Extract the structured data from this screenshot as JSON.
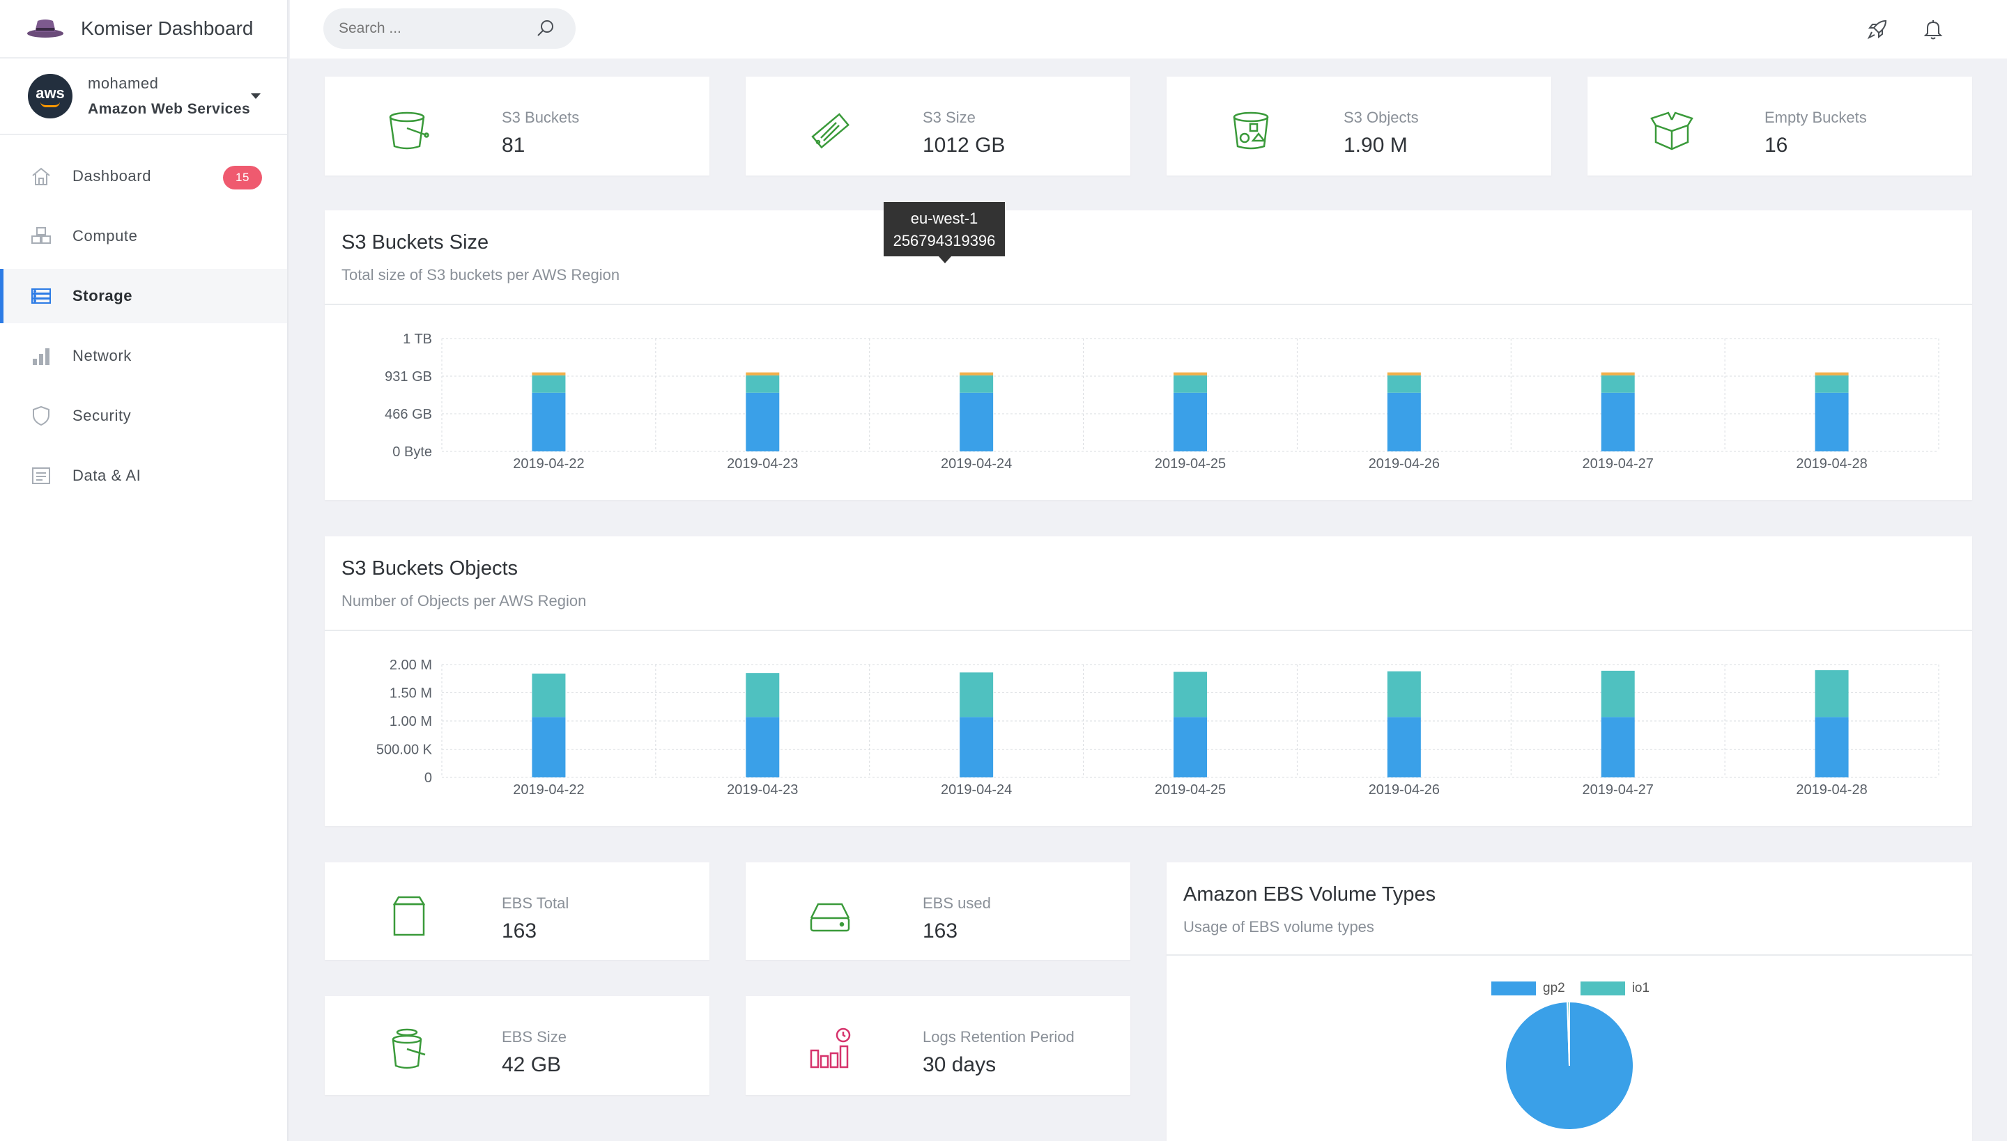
{
  "app": {
    "title": "Komiser Dashboard"
  },
  "account": {
    "user": "mohamed",
    "provider": "Amazon Web Services",
    "avatar_text": "aws"
  },
  "nav": [
    {
      "label": "Dashboard",
      "icon": "home-icon",
      "badge": "15"
    },
    {
      "label": "Compute",
      "icon": "cubes-icon"
    },
    {
      "label": "Storage",
      "icon": "storage-icon",
      "active": true
    },
    {
      "label": "Network",
      "icon": "bar-chart-icon"
    },
    {
      "label": "Security",
      "icon": "shield-icon"
    },
    {
      "label": "Data & AI",
      "icon": "document-icon"
    }
  ],
  "search": {
    "placeholder": "Search ..."
  },
  "stats": {
    "s3_buckets": {
      "label": "S3 Buckets",
      "value": "81"
    },
    "s3_size": {
      "label": "S3 Size",
      "value": "1012 GB"
    },
    "s3_objects": {
      "label": "S3 Objects",
      "value": "1.90 M"
    },
    "empty_buckets": {
      "label": "Empty Buckets",
      "value": "16"
    },
    "ebs_total": {
      "label": "EBS Total",
      "value": "163"
    },
    "ebs_used": {
      "label": "EBS used",
      "value": "163"
    },
    "ebs_size": {
      "label": "EBS Size",
      "value": "42 GB"
    },
    "logs_retention": {
      "label": "Logs Retention Period",
      "value": "30 days"
    }
  },
  "colors": {
    "accent": "#2c7be5",
    "series_blue": "#3aa0e8",
    "series_teal": "#4fc1c0",
    "series_orange": "#f2b04c",
    "icon_green": "#3a9a3a",
    "icon_pink": "#d6336c",
    "badge": "#ef5a6f"
  },
  "size_panel": {
    "title": "S3 Buckets Size",
    "subtitle": "Total size of S3 buckets per AWS Region"
  },
  "objects_panel": {
    "title": "S3 Buckets Objects",
    "subtitle": "Number of Objects per AWS Region"
  },
  "ebs_panel": {
    "title": "Amazon EBS Volume Types",
    "subtitle": "Usage of EBS volume types"
  },
  "tooltip": {
    "region": "eu-west-1",
    "value": "256794319396"
  },
  "chart_data": [
    {
      "type": "bar",
      "stacked": true,
      "title": "S3 Buckets Size",
      "categories": [
        "2019-04-22",
        "2019-04-23",
        "2019-04-24",
        "2019-04-25",
        "2019-04-26",
        "2019-04-27",
        "2019-04-28"
      ],
      "yticks": [
        "0 Byte",
        "466 GB",
        "931 GB",
        "1 TB"
      ],
      "ylim": [
        0,
        1.5
      ],
      "yunit": "TB",
      "series": [
        {
          "values": [
            0.78,
            0.78,
            0.78,
            0.78,
            0.78,
            0.78,
            0.78
          ]
        },
        {
          "values": [
            0.23,
            0.23,
            0.23,
            0.23,
            0.23,
            0.23,
            0.23
          ]
        },
        {
          "values": [
            0.04,
            0.04,
            0.04,
            0.04,
            0.04,
            0.04,
            0.04
          ]
        }
      ]
    },
    {
      "type": "bar",
      "stacked": true,
      "title": "S3 Buckets Objects",
      "categories": [
        "2019-04-22",
        "2019-04-23",
        "2019-04-24",
        "2019-04-25",
        "2019-04-26",
        "2019-04-27",
        "2019-04-28"
      ],
      "yticks": [
        "0",
        "500.00 K",
        "1.00 M",
        "1.50 M",
        "2.00 M"
      ],
      "ylim": [
        0,
        2.0
      ],
      "yunit": "M",
      "series": [
        {
          "values": [
            1.07,
            1.07,
            1.07,
            1.07,
            1.07,
            1.07,
            1.07
          ]
        },
        {
          "values": [
            0.77,
            0.78,
            0.79,
            0.8,
            0.81,
            0.82,
            0.83
          ]
        }
      ]
    },
    {
      "type": "pie",
      "title": "Amazon EBS Volume Types",
      "labels": [
        "gp2",
        "io1"
      ],
      "values": [
        99.5,
        0.5
      ]
    }
  ]
}
